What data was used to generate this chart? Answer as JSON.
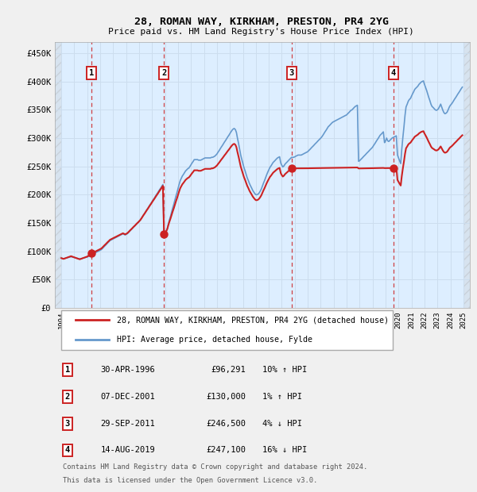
{
  "title": "28, ROMAN WAY, KIRKHAM, PRESTON, PR4 2YG",
  "subtitle": "Price paid vs. HM Land Registry's House Price Index (HPI)",
  "xlim_left": 1993.5,
  "xlim_right": 2025.5,
  "ylim_bottom": 0,
  "ylim_top": 470000,
  "yticks": [
    0,
    50000,
    100000,
    150000,
    200000,
    250000,
    300000,
    350000,
    400000,
    450000
  ],
  "ytick_labels": [
    "£0",
    "£50K",
    "£100K",
    "£150K",
    "£200K",
    "£250K",
    "£300K",
    "£350K",
    "£400K",
    "£450K"
  ],
  "xticks": [
    1994,
    1995,
    1996,
    1997,
    1998,
    1999,
    2000,
    2001,
    2002,
    2003,
    2004,
    2005,
    2006,
    2007,
    2008,
    2009,
    2010,
    2011,
    2012,
    2013,
    2014,
    2015,
    2016,
    2017,
    2018,
    2019,
    2020,
    2021,
    2022,
    2023,
    2024,
    2025
  ],
  "hpi_color": "#6699cc",
  "price_color": "#cc2222",
  "dashed_line_color": "#cc2222",
  "grid_color": "#ccddee",
  "background_color": "#ddeeff",
  "legend_line1": "28, ROMAN WAY, KIRKHAM, PRESTON, PR4 2YG (detached house)",
  "legend_line2": "HPI: Average price, detached house, Fylde",
  "transactions": [
    {
      "num": 1,
      "date": "30-APR-1996",
      "price": 96291,
      "pct": "10%",
      "dir": "↑",
      "year": 1996.33
    },
    {
      "num": 2,
      "date": "07-DEC-2001",
      "price": 130000,
      "pct": "1%",
      "dir": "↑",
      "year": 2001.92
    },
    {
      "num": 3,
      "date": "29-SEP-2011",
      "price": 246500,
      "pct": "4%",
      "dir": "↓",
      "year": 2011.75
    },
    {
      "num": 4,
      "date": "14-AUG-2019",
      "price": 247100,
      "pct": "16%",
      "dir": "↓",
      "year": 2019.62
    }
  ],
  "footnote1": "Contains HM Land Registry data © Crown copyright and database right 2024.",
  "footnote2": "This data is licensed under the Open Government Licence v3.0.",
  "hpi_years": [
    1994.0,
    1994.08,
    1994.17,
    1994.25,
    1994.33,
    1994.42,
    1994.5,
    1994.58,
    1994.67,
    1994.75,
    1994.83,
    1994.92,
    1995.0,
    1995.08,
    1995.17,
    1995.25,
    1995.33,
    1995.42,
    1995.5,
    1995.58,
    1995.67,
    1995.75,
    1995.83,
    1995.92,
    1996.0,
    1996.08,
    1996.17,
    1996.25,
    1996.33,
    1996.42,
    1996.5,
    1996.58,
    1996.67,
    1996.75,
    1996.83,
    1996.92,
    1997.0,
    1997.08,
    1997.17,
    1997.25,
    1997.33,
    1997.42,
    1997.5,
    1997.58,
    1997.67,
    1997.75,
    1997.83,
    1997.92,
    1998.0,
    1998.08,
    1998.17,
    1998.25,
    1998.33,
    1998.42,
    1998.5,
    1998.58,
    1998.67,
    1998.75,
    1998.83,
    1998.92,
    1999.0,
    1999.08,
    1999.17,
    1999.25,
    1999.33,
    1999.42,
    1999.5,
    1999.58,
    1999.67,
    1999.75,
    1999.83,
    1999.92,
    2000.0,
    2000.08,
    2000.17,
    2000.25,
    2000.33,
    2000.42,
    2000.5,
    2000.58,
    2000.67,
    2000.75,
    2000.83,
    2000.92,
    2001.0,
    2001.08,
    2001.17,
    2001.25,
    2001.33,
    2001.42,
    2001.5,
    2001.58,
    2001.67,
    2001.75,
    2001.83,
    2001.92,
    2002.0,
    2002.08,
    2002.17,
    2002.25,
    2002.33,
    2002.42,
    2002.5,
    2002.58,
    2002.67,
    2002.75,
    2002.83,
    2002.92,
    2003.0,
    2003.08,
    2003.17,
    2003.25,
    2003.33,
    2003.42,
    2003.5,
    2003.58,
    2003.67,
    2003.75,
    2003.83,
    2003.92,
    2004.0,
    2004.08,
    2004.17,
    2004.25,
    2004.33,
    2004.42,
    2004.5,
    2004.58,
    2004.67,
    2004.75,
    2004.83,
    2004.92,
    2005.0,
    2005.08,
    2005.17,
    2005.25,
    2005.33,
    2005.42,
    2005.5,
    2005.58,
    2005.67,
    2005.75,
    2005.83,
    2005.92,
    2006.0,
    2006.08,
    2006.17,
    2006.25,
    2006.33,
    2006.42,
    2006.5,
    2006.58,
    2006.67,
    2006.75,
    2006.83,
    2006.92,
    2007.0,
    2007.08,
    2007.17,
    2007.25,
    2007.33,
    2007.42,
    2007.5,
    2007.58,
    2007.67,
    2007.75,
    2007.83,
    2007.92,
    2008.0,
    2008.08,
    2008.17,
    2008.25,
    2008.33,
    2008.42,
    2008.5,
    2008.58,
    2008.67,
    2008.75,
    2008.83,
    2008.92,
    2009.0,
    2009.08,
    2009.17,
    2009.25,
    2009.33,
    2009.42,
    2009.5,
    2009.58,
    2009.67,
    2009.75,
    2009.83,
    2009.92,
    2010.0,
    2010.08,
    2010.17,
    2010.25,
    2010.33,
    2010.42,
    2010.5,
    2010.58,
    2010.67,
    2010.75,
    2010.83,
    2010.92,
    2011.0,
    2011.08,
    2011.17,
    2011.25,
    2011.33,
    2011.42,
    2011.5,
    2011.58,
    2011.67,
    2011.75,
    2011.83,
    2011.92,
    2012.0,
    2012.08,
    2012.17,
    2012.25,
    2012.33,
    2012.42,
    2012.5,
    2012.58,
    2012.67,
    2012.75,
    2012.83,
    2012.92,
    2013.0,
    2013.08,
    2013.17,
    2013.25,
    2013.33,
    2013.42,
    2013.5,
    2013.58,
    2013.67,
    2013.75,
    2013.83,
    2013.92,
    2014.0,
    2014.08,
    2014.17,
    2014.25,
    2014.33,
    2014.42,
    2014.5,
    2014.58,
    2014.67,
    2014.75,
    2014.83,
    2014.92,
    2015.0,
    2015.08,
    2015.17,
    2015.25,
    2015.33,
    2015.42,
    2015.5,
    2015.58,
    2015.67,
    2015.75,
    2015.83,
    2015.92,
    2016.0,
    2016.08,
    2016.17,
    2016.25,
    2016.33,
    2016.42,
    2016.5,
    2016.58,
    2016.67,
    2016.75,
    2016.83,
    2016.92,
    2017.0,
    2017.08,
    2017.17,
    2017.25,
    2017.33,
    2017.42,
    2017.5,
    2017.58,
    2017.67,
    2017.75,
    2017.83,
    2017.92,
    2018.0,
    2018.08,
    2018.17,
    2018.25,
    2018.33,
    2018.42,
    2018.5,
    2018.58,
    2018.67,
    2018.75,
    2018.83,
    2018.92,
    2019.0,
    2019.08,
    2019.17,
    2019.25,
    2019.33,
    2019.42,
    2019.5,
    2019.58,
    2019.67,
    2019.75,
    2019.83,
    2019.92,
    2020.0,
    2020.08,
    2020.17,
    2020.25,
    2020.33,
    2020.42,
    2020.5,
    2020.58,
    2020.67,
    2020.75,
    2020.83,
    2020.92,
    2021.0,
    2021.08,
    2021.17,
    2021.25,
    2021.33,
    2021.42,
    2021.5,
    2021.58,
    2021.67,
    2021.75,
    2021.83,
    2021.92,
    2022.0,
    2022.08,
    2022.17,
    2022.25,
    2022.33,
    2022.42,
    2022.5,
    2022.58,
    2022.67,
    2022.75,
    2022.83,
    2022.92,
    2023.0,
    2023.08,
    2023.17,
    2023.25,
    2023.33,
    2023.42,
    2023.5,
    2023.58,
    2023.67,
    2023.75,
    2023.83,
    2023.92,
    2024.0,
    2024.08,
    2024.17,
    2024.25,
    2024.33,
    2024.42,
    2024.5,
    2024.58,
    2024.67,
    2024.75,
    2024.83,
    2024.92
  ],
  "hpi_values": [
    88000,
    87500,
    87000,
    87500,
    88000,
    88500,
    89000,
    89500,
    90000,
    90500,
    90000,
    89500,
    89000,
    88500,
    88000,
    87500,
    87000,
    86500,
    87000,
    87500,
    88000,
    88500,
    89000,
    89500,
    90000,
    91000,
    92000,
    93000,
    94000,
    95000,
    96000,
    97000,
    98000,
    99000,
    100000,
    101000,
    102000,
    103000,
    105000,
    107000,
    109000,
    111000,
    113000,
    115000,
    117000,
    119000,
    120000,
    121000,
    122000,
    123000,
    124000,
    125000,
    126000,
    127000,
    128000,
    129000,
    130000,
    131000,
    130000,
    129000,
    130000,
    131000,
    133000,
    135000,
    137000,
    139000,
    141000,
    143000,
    145000,
    147000,
    149000,
    151000,
    153000,
    155000,
    158000,
    161000,
    164000,
    167000,
    170000,
    173000,
    176000,
    179000,
    182000,
    185000,
    188000,
    191000,
    194000,
    197000,
    200000,
    203000,
    206000,
    209000,
    212000,
    215000,
    218000,
    129000,
    131000,
    135000,
    140000,
    148000,
    155000,
    162000,
    169000,
    176000,
    183000,
    190000,
    197000,
    204000,
    211000,
    218000,
    225000,
    229000,
    233000,
    236000,
    239000,
    242000,
    244000,
    246000,
    247000,
    250000,
    253000,
    256000,
    259000,
    262000,
    262000,
    262000,
    262000,
    261000,
    261000,
    261000,
    262000,
    263000,
    264000,
    265000,
    265000,
    265000,
    265000,
    265000,
    265000,
    266000,
    266000,
    267000,
    268000,
    270000,
    272000,
    275000,
    278000,
    281000,
    284000,
    287000,
    290000,
    293000,
    296000,
    299000,
    302000,
    305000,
    308000,
    311000,
    314000,
    316000,
    317000,
    315000,
    310000,
    300000,
    290000,
    280000,
    270000,
    262000,
    255000,
    248000,
    242000,
    236000,
    230000,
    225000,
    220000,
    216000,
    212000,
    208000,
    205000,
    202000,
    200000,
    200000,
    201000,
    203000,
    206000,
    210000,
    215000,
    220000,
    225000,
    230000,
    235000,
    240000,
    244000,
    248000,
    251000,
    254000,
    257000,
    259000,
    261000,
    263000,
    265000,
    266000,
    267000,
    256000,
    252000,
    249000,
    251000,
    254000,
    256000,
    258000,
    260000,
    262000,
    264000,
    266000,
    266000,
    266000,
    267000,
    268000,
    269000,
    270000,
    270000,
    270000,
    270000,
    271000,
    272000,
    273000,
    274000,
    275000,
    276000,
    278000,
    280000,
    282000,
    284000,
    286000,
    288000,
    290000,
    292000,
    294000,
    296000,
    298000,
    300000,
    302000,
    305000,
    308000,
    311000,
    314000,
    317000,
    320000,
    322000,
    324000,
    326000,
    328000,
    329000,
    330000,
    331000,
    332000,
    333000,
    334000,
    335000,
    336000,
    337000,
    338000,
    339000,
    340000,
    341000,
    343000,
    345000,
    347000,
    349000,
    350000,
    352000,
    354000,
    356000,
    357000,
    358000,
    259000,
    260000,
    262000,
    264000,
    266000,
    268000,
    270000,
    272000,
    274000,
    276000,
    278000,
    280000,
    282000,
    284000,
    287000,
    290000,
    293000,
    296000,
    299000,
    302000,
    305000,
    307000,
    309000,
    311000,
    292000,
    295000,
    300000,
    295000,
    294000,
    296000,
    298000,
    300000,
    301000,
    302000,
    303000,
    304000,
    270000,
    265000,
    260000,
    255000,
    280000,
    300000,
    320000,
    340000,
    355000,
    360000,
    365000,
    368000,
    370000,
    374000,
    378000,
    382000,
    386000,
    388000,
    390000,
    392000,
    395000,
    397000,
    399000,
    400000,
    401000,
    395000,
    390000,
    384000,
    378000,
    372000,
    366000,
    360000,
    356000,
    354000,
    352000,
    350000,
    349000,
    350000,
    352000,
    356000,
    360000,
    355000,
    349000,
    345000,
    343000,
    344000,
    346000,
    350000,
    355000,
    358000,
    360000,
    363000,
    366000,
    369000,
    372000,
    375000,
    378000,
    381000,
    384000,
    387000,
    390000,
    393000,
    396000,
    399000,
    400000,
    400000,
    399000,
    398000,
    397000,
    396000,
    395000,
    394000
  ]
}
